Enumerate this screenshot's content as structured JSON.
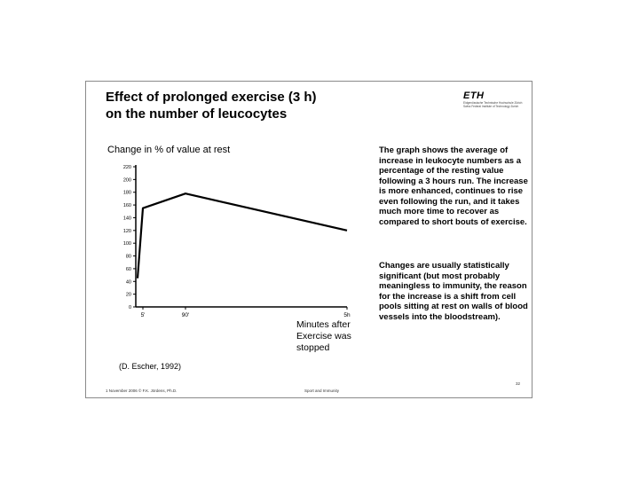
{
  "slide": {
    "title_line1": "Effect of prolonged exercise (3 h)",
    "title_line2": "on the number of leucocytes",
    "logo": {
      "mark": "ETH",
      "line1": "Eidgenössische Technische Hochschule Zürich",
      "line2": "Swiss Federal Institute of Technology Zurich"
    },
    "description_1": "The graph shows the average of increase in leukocyte numbers as a percentage of the resting value following a 3 hours run. The increase is more enhanced, continues to rise even following the run, and it takes much more time to recover as compared to short bouts of exercise.",
    "description_2": "Changes are usually statistically significant (but most probably meaningless to immunity, the reason for the increase is a shift from cell pools sitting at rest on walls of blood vessels into the bloodstream).",
    "minutes_label": "Minutes after Exercise was stopped",
    "citation": "(D. Escher, 1992)",
    "footer_left": "1 November 2006 © F.K. Jördens, Ph.D.",
    "footer_center": "Sport and Immunity",
    "page_number": "32"
  },
  "chart_data": {
    "type": "line",
    "title": "Change in % of value at rest",
    "xlabel": "",
    "ylabel": "",
    "ylim": [
      0,
      220
    ],
    "yticks": [
      0,
      20,
      40,
      60,
      80,
      100,
      120,
      140,
      160,
      180,
      200,
      220
    ],
    "xticks": [
      {
        "minute": 5,
        "label": "5'"
      },
      {
        "minute": 90,
        "label": "90'"
      },
      {
        "minute": 300,
        "label": "5h"
      }
    ],
    "grid": false,
    "series": [
      {
        "points": [
          {
            "minute": 0,
            "value": 45
          },
          {
            "minute": 5,
            "value": 155
          },
          {
            "minute": 90,
            "value": 178
          },
          {
            "minute": 300,
            "value": 120
          }
        ]
      }
    ],
    "line_color": "#000000"
  }
}
